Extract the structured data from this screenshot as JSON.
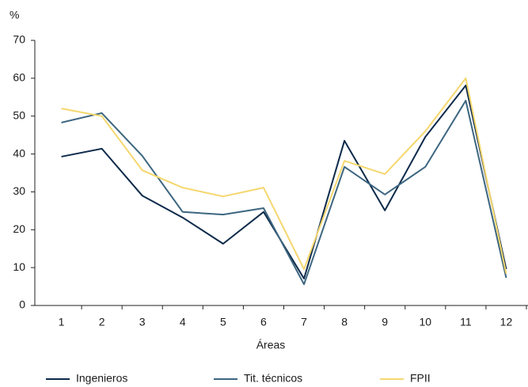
{
  "chart_data": {
    "type": "line",
    "y_unit": "%",
    "x_label": "Áreas",
    "categories": [
      "1",
      "2",
      "3",
      "4",
      "5",
      "6",
      "7",
      "8",
      "9",
      "10",
      "11",
      "12"
    ],
    "series": [
      {
        "name": "Ingenieros",
        "color": "#0d2a4a",
        "values": [
          39.3,
          41.4,
          29.0,
          23.2,
          16.3,
          24.7,
          7.1,
          43.5,
          25.1,
          44.5,
          58.1,
          9.6
        ]
      },
      {
        "name": "Tit. técnicos",
        "color": "#3d6680",
        "values": [
          48.3,
          50.8,
          39.5,
          24.7,
          24.0,
          25.7,
          5.6,
          36.6,
          29.3,
          36.6,
          54.1,
          7.3
        ]
      },
      {
        "name": "FPII",
        "color": "#f5d76e",
        "values": [
          52.0,
          50.0,
          35.7,
          31.1,
          28.8,
          31.1,
          9.6,
          38.2,
          34.7,
          46.0,
          60.0,
          8.4
        ]
      }
    ],
    "ylim": [
      0,
      70
    ],
    "yticks": [
      0,
      10,
      20,
      30,
      40,
      50,
      60,
      70
    ],
    "grid": false,
    "legend": "bottom"
  }
}
